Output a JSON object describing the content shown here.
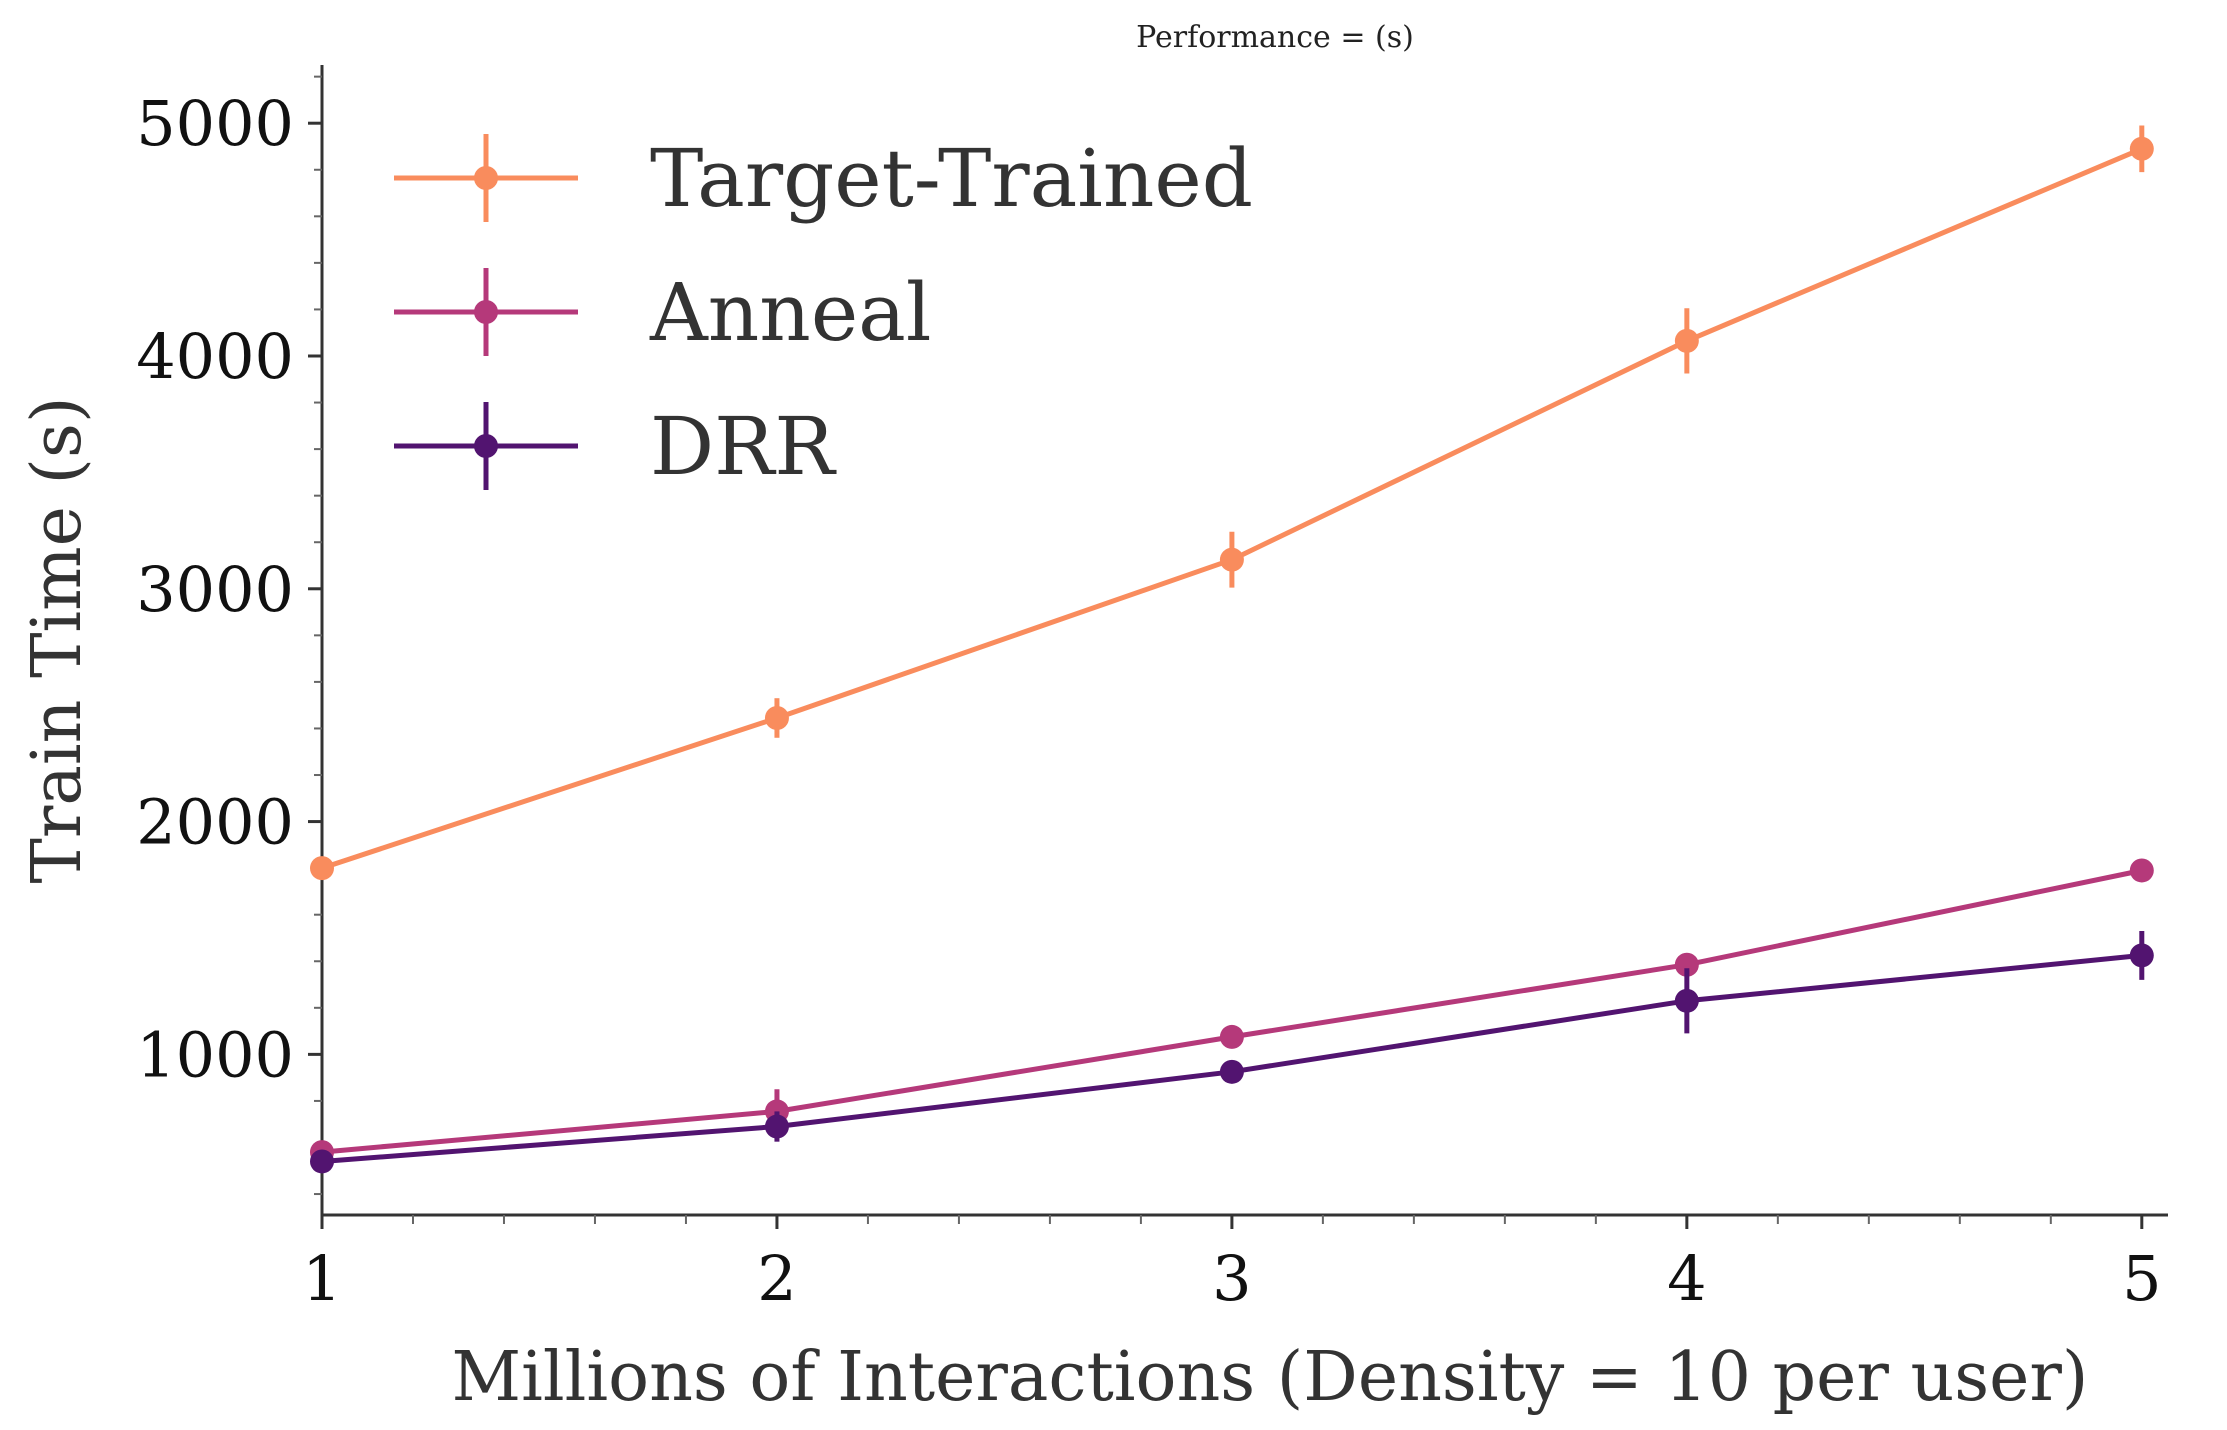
{
  "chart_data": {
    "type": "line",
    "title": "Performance = (s)",
    "xlabel": "Millions of Interactions (Density = 10 per user)",
    "ylabel": "Train Time (s)",
    "x": [
      1,
      2,
      3,
      4,
      5
    ],
    "x_ticks": [
      "1",
      "2",
      "3",
      "4",
      "5"
    ],
    "y_ticks": [
      "1000",
      "2000",
      "3000",
      "4000",
      "5000"
    ],
    "xlim": [
      1,
      5.04
    ],
    "ylim": [
      310,
      5250
    ],
    "grid": false,
    "legend_position": "top-left",
    "error_bars": true,
    "series": [
      {
        "name": "Target-Trained",
        "color": "#f98c5d",
        "values": [
          1800,
          2445,
          3125,
          4065,
          4890
        ],
        "errors": [
          10,
          85,
          120,
          140,
          100
        ]
      },
      {
        "name": "Anneal",
        "color": "#b5397a",
        "values": [
          580,
          755,
          1075,
          1385,
          1790
        ],
        "errors": [
          25,
          95,
          25,
          25,
          25
        ]
      },
      {
        "name": "DRR",
        "color": "#521470",
        "values": [
          540,
          690,
          925,
          1230,
          1425
        ],
        "errors": [
          25,
          65,
          25,
          140,
          105
        ]
      }
    ]
  }
}
